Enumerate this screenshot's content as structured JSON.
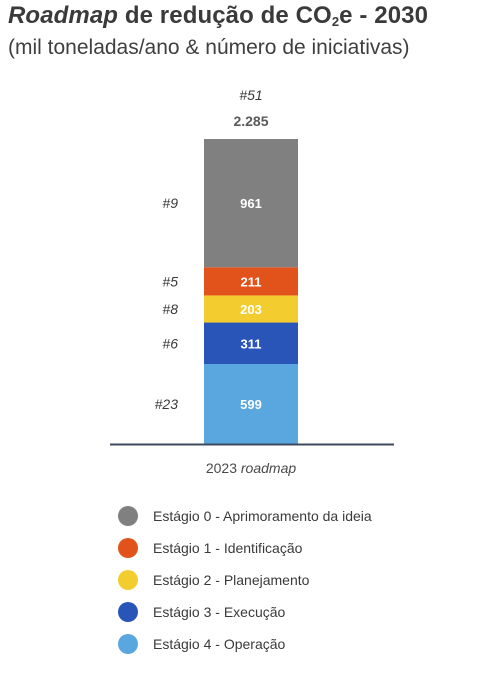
{
  "title": {
    "italic": "Roadmap",
    "main": " de redução de CO",
    "sub": "2",
    "rest": "e - 2030"
  },
  "subtitle": "(mil toneladas/ano & número de iniciativas)",
  "chart_data": {
    "type": "bar",
    "stacked": true,
    "categories": [
      "2023 roadmap"
    ],
    "category_label": {
      "plain": "2023",
      "italic": "roadmap"
    },
    "total_label": "2.285",
    "total_count_label": "#51",
    "series": [
      {
        "name": "Estágio 4 - Operação",
        "values": [
          599
        ],
        "value_label": "599",
        "count_label": "#23",
        "color": "#5aa7e0"
      },
      {
        "name": "Estágio 3 - Execução",
        "values": [
          311
        ],
        "value_label": "311",
        "count_label": "#6",
        "color": "#2a55b8"
      },
      {
        "name": "Estágio 2 - Planejamento",
        "values": [
          203
        ],
        "value_label": "203",
        "count_label": "#8",
        "color": "#f3cd2f"
      },
      {
        "name": "Estágio 1 - Identificação",
        "values": [
          211
        ],
        "value_label": "211",
        "count_label": "#5",
        "color": "#e2531b"
      },
      {
        "name": "Estágio 0 - Aprimoramento da ideia",
        "values": [
          961
        ],
        "value_label": "961",
        "count_label": "#9",
        "color": "#808080"
      }
    ],
    "legend_order": [
      4,
      3,
      2,
      1,
      0
    ],
    "legend_position": "bottom-left",
    "grid": false
  }
}
